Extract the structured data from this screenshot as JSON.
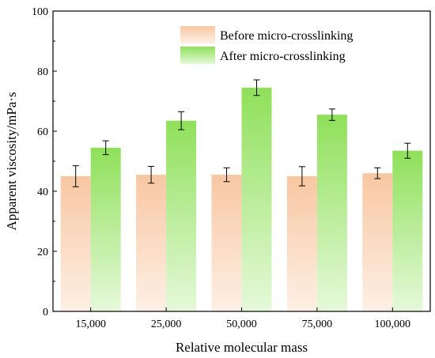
{
  "chart_data": {
    "type": "bar",
    "title": "",
    "xlabel": "Relative molecular mass",
    "ylabel": "Apparent viscosity/mPa·s",
    "categories": [
      "15,000",
      "25,000",
      "50,000",
      "75,000",
      "100,000"
    ],
    "ylim": [
      0,
      100
    ],
    "yticks": [
      "0",
      "20",
      "40",
      "60",
      "80",
      "100"
    ],
    "grid": false,
    "legend": "top-center",
    "series": [
      {
        "name": "Before micro-crosslinking",
        "values": [
          45.0,
          45.5,
          45.5,
          45.0,
          46.0
        ],
        "errors": [
          3.5,
          2.8,
          2.3,
          3.2,
          1.8
        ],
        "color_top": "#f8c7a2",
        "color_bottom": "#fdf0e6"
      },
      {
        "name": "After micro-crosslinking",
        "values": [
          54.5,
          63.5,
          74.5,
          65.5,
          53.5
        ],
        "errors": [
          2.3,
          3.0,
          2.6,
          1.9,
          2.5
        ],
        "color_top": "#8fe05a",
        "color_bottom": "#e6f9da"
      }
    ]
  }
}
